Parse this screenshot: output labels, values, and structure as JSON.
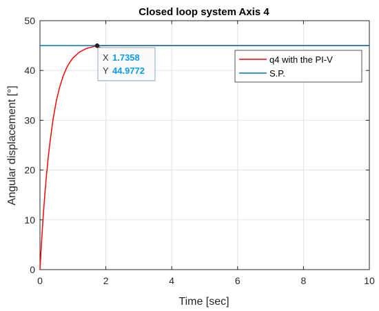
{
  "chart_data": {
    "type": "line",
    "title": "Closed loop system Axis 4",
    "xlabel": "Time [sec]",
    "ylabel": "Angular displacement [°]",
    "xlim": [
      0,
      10
    ],
    "ylim": [
      0,
      50
    ],
    "xticks": [
      "0",
      "2",
      "4",
      "6",
      "8",
      "10"
    ],
    "yticks": [
      "0",
      "10",
      "20",
      "30",
      "40",
      "50"
    ],
    "grid": true,
    "legend_position": "top-right",
    "series": [
      {
        "name": "q4 with the PI-V",
        "color": "#ff0000",
        "x": [
          0,
          0.05,
          0.1,
          0.15,
          0.2,
          0.25,
          0.3,
          0.4,
          0.5,
          0.6,
          0.7,
          0.8,
          0.9,
          1.0,
          1.2,
          1.4,
          1.6,
          1.7358,
          2.0,
          2.5,
          3,
          4,
          5,
          6,
          7,
          8,
          9,
          10
        ],
        "y": [
          0,
          5.8,
          10.9,
          15.3,
          19.1,
          22.5,
          25.4,
          30.3,
          34.0,
          36.7,
          38.8,
          40.4,
          41.6,
          42.5,
          43.7,
          44.4,
          44.75,
          44.9772,
          45.0,
          45.0,
          45.0,
          45.0,
          45.0,
          45.0,
          45.0,
          45.0,
          45.0,
          45.0
        ]
      },
      {
        "name": "S.P.",
        "color": "#0072bd",
        "x": [
          0,
          10
        ],
        "y": [
          45,
          45
        ]
      }
    ],
    "datatip": {
      "x_label": "X",
      "x_value": "1.7358",
      "y_label": "Y",
      "y_value": "44.9772",
      "x": 1.7358,
      "y": 44.9772
    }
  }
}
